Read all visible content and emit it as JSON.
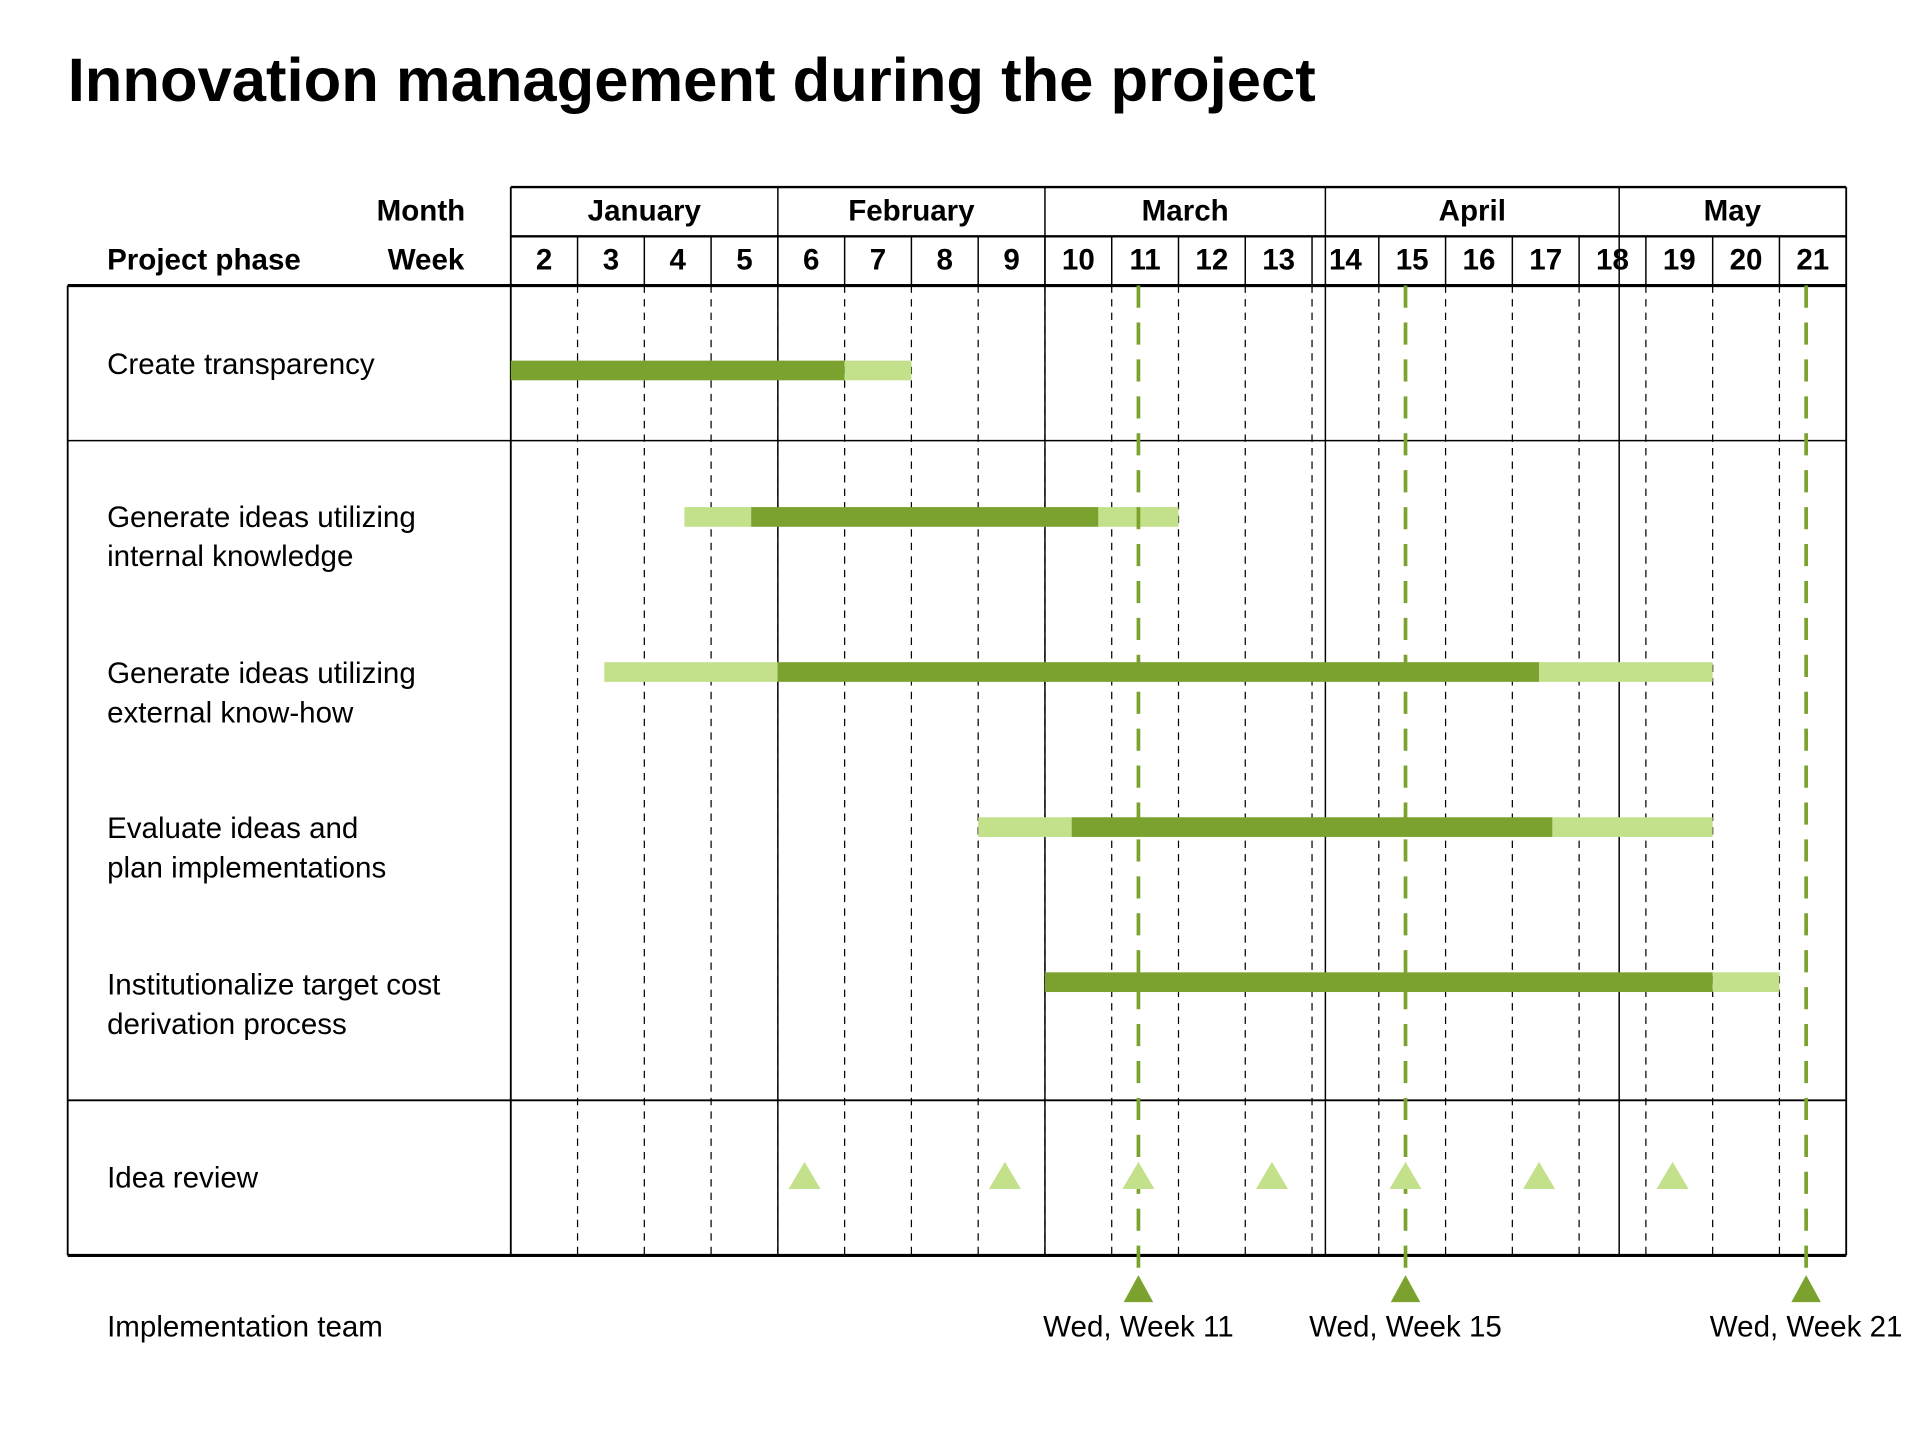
{
  "title": "Innovation management during the project",
  "chart_data": {
    "type": "gantt",
    "title": "Innovation management during the project",
    "row_header_month": "Month",
    "row_header_week": "Week",
    "column_header_phase": "Project phase",
    "months": [
      {
        "label": "January",
        "start_week": 2,
        "end_week": 6
      },
      {
        "label": "February",
        "start_week": 6,
        "end_week": 10
      },
      {
        "label": "March",
        "start_week": 10,
        "end_week": 14.2
      },
      {
        "label": "April",
        "start_week": 14.2,
        "end_week": 18.6
      },
      {
        "label": "May",
        "start_week": 18.6,
        "end_week": 22
      }
    ],
    "weeks": [
      "2",
      "3",
      "4",
      "5",
      "6",
      "7",
      "8",
      "9",
      "10",
      "11",
      "12",
      "13",
      "14",
      "15",
      "16",
      "17",
      "18",
      "19",
      "20",
      "21"
    ],
    "colors": {
      "core": "#7ba22e",
      "buffer": "#c3e08a",
      "milestone": "#7ba22e",
      "review": "#c3e08a"
    },
    "phases": [
      {
        "label": "Create transparency",
        "segments": [
          {
            "type": "core",
            "start": 2,
            "end": 7
          },
          {
            "type": "buffer",
            "start": 7,
            "end": 8
          }
        ]
      },
      {
        "label": "Generate ideas utilizing\ninternal knowledge",
        "segments": [
          {
            "type": "buffer",
            "start": 4.6,
            "end": 5.6
          },
          {
            "type": "core",
            "start": 5.6,
            "end": 10.8
          },
          {
            "type": "buffer",
            "start": 10.8,
            "end": 12
          }
        ]
      },
      {
        "label": "Generate ideas utilizing\nexternal know-how",
        "segments": [
          {
            "type": "buffer",
            "start": 3.4,
            "end": 6
          },
          {
            "type": "core",
            "start": 6,
            "end": 17.4
          },
          {
            "type": "buffer",
            "start": 17.4,
            "end": 20
          }
        ]
      },
      {
        "label": "Evaluate ideas and\nplan implementations",
        "segments": [
          {
            "type": "buffer",
            "start": 9,
            "end": 10.4
          },
          {
            "type": "core",
            "start": 10.4,
            "end": 17.6
          },
          {
            "type": "buffer",
            "start": 17.6,
            "end": 20
          }
        ]
      },
      {
        "label": "Institutionalize target cost\nderivation process",
        "segments": [
          {
            "type": "core",
            "start": 10,
            "end": 20
          },
          {
            "type": "buffer",
            "start": 20,
            "end": 21
          }
        ]
      }
    ],
    "idea_review": {
      "label": "Idea review",
      "weeks": [
        6.4,
        9.4,
        11.4,
        13.4,
        15.4,
        17.4,
        19.4
      ]
    },
    "implementation_team": {
      "label": "Implementation team",
      "milestones": [
        {
          "label": "Wed, Week 11",
          "week": 11.4
        },
        {
          "label": "Wed, Week 15",
          "week": 15.4
        },
        {
          "label": "Wed, Week 21",
          "week": 21.4
        }
      ]
    }
  }
}
